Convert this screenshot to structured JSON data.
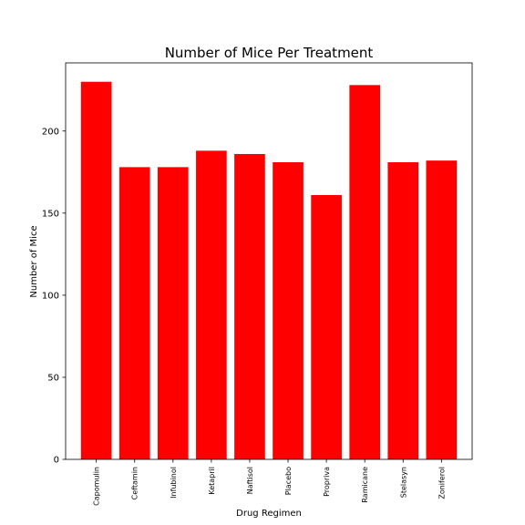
{
  "chart_data": {
    "type": "bar",
    "title": "Number of Mice Per Treatment",
    "xlabel": "Drug Regimen",
    "ylabel": "Number of Mice",
    "categories": [
      "Capomulin",
      "Ceftamin",
      "Infubinol",
      "Ketapril",
      "Naftisol",
      "Placebo",
      "Propriva",
      "Ramicane",
      "Stelasyn",
      "Zoniferol"
    ],
    "values": [
      230,
      178,
      178,
      188,
      186,
      181,
      161,
      228,
      181,
      182
    ],
    "yticks": [
      0,
      50,
      100,
      150,
      200
    ],
    "ylim": [
      0,
      241.5
    ],
    "bar_color": "#ff0000",
    "grid": false,
    "legend": "none"
  }
}
